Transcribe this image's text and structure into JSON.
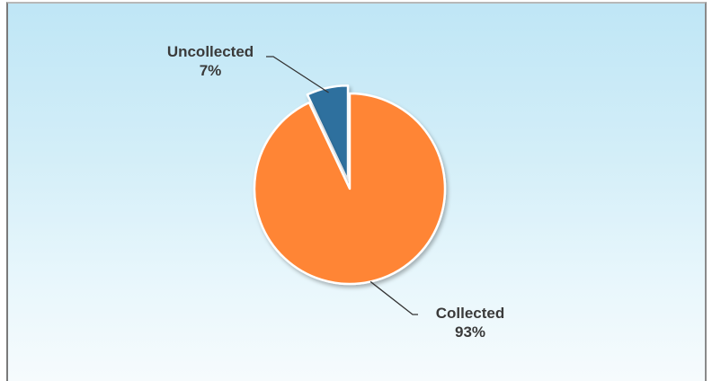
{
  "chart_data": {
    "type": "pie",
    "title": "",
    "slices": [
      {
        "label": "Uncollected",
        "value": 7,
        "value_label": "7%",
        "color": "#2e6f9e",
        "exploded": true
      },
      {
        "label": "Collected",
        "value": 93,
        "value_label": "93%",
        "color": "#ff8534",
        "exploded": false
      }
    ],
    "start_angle_deg": 0,
    "direction": "counterclockwise",
    "legend": "none",
    "background": "light-blue-gradient"
  }
}
